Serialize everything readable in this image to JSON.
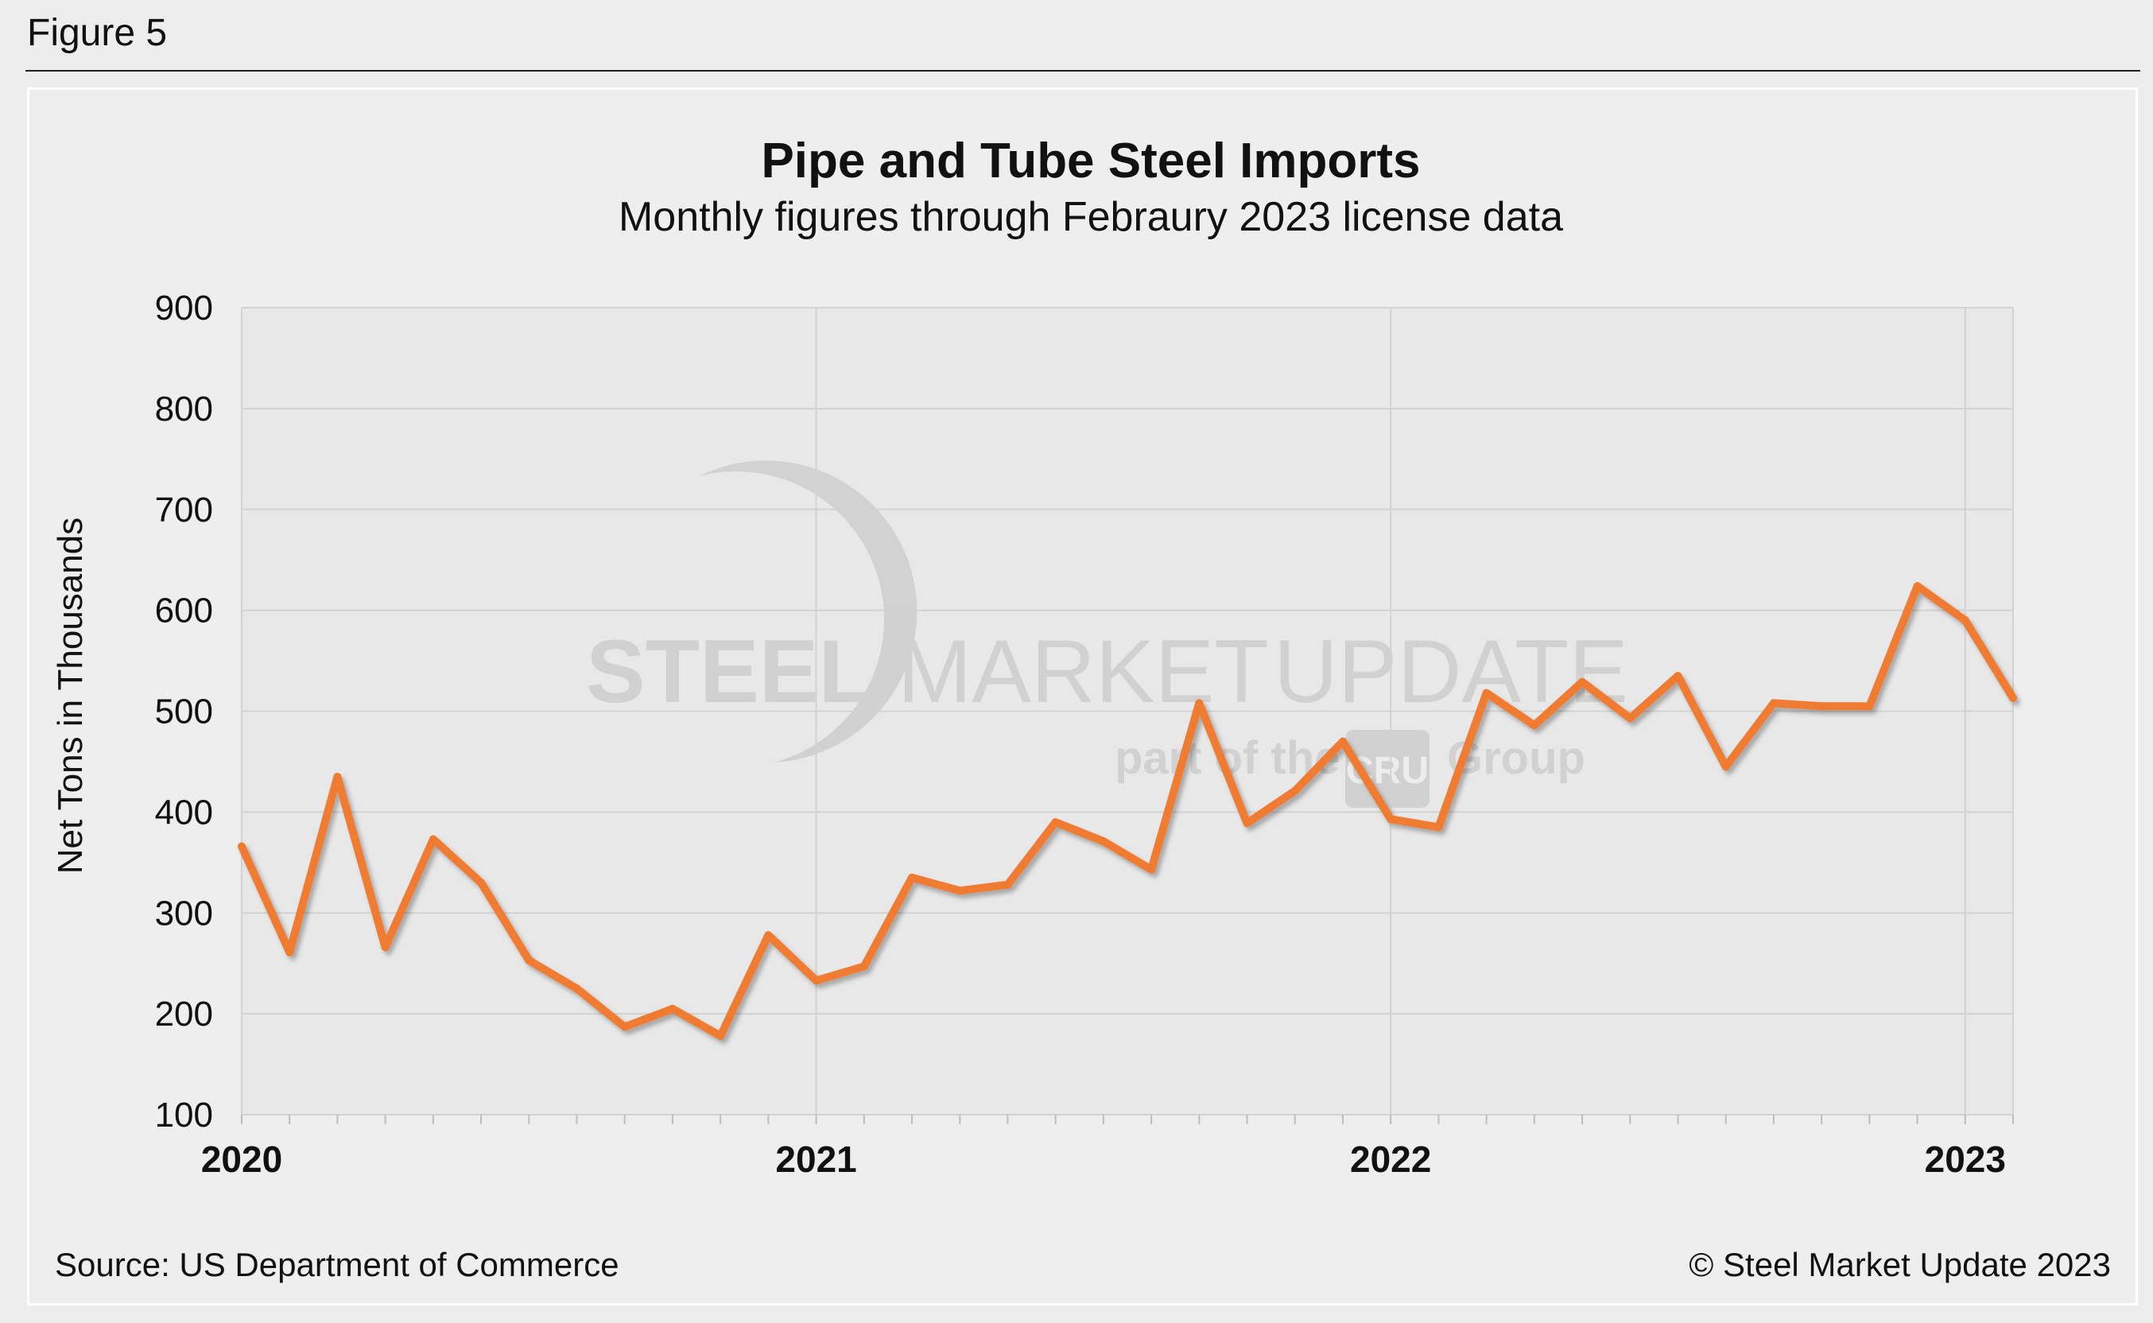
{
  "figure": {
    "label": "Figure 5"
  },
  "colors": {
    "line": "#ef7b31",
    "plot_bg": "#e8e8e9",
    "grid": "#d2d2d2",
    "watermark": "#cfcfcf"
  },
  "watermark": {
    "brand_bold": "STEEL",
    "brand_mid": "MARKET",
    "brand_light": "UPDATE",
    "tagline_prefix": "part of the",
    "tagline_logo": "CRU",
    "tagline_suffix": "Group"
  },
  "chart_data": {
    "type": "line",
    "title": "Pipe and Tube Steel Imports",
    "subtitle": "Monthly figures through Febraury 2023 license data",
    "xlabel": "",
    "ylabel": "Net Tons in Thousands",
    "ylim": [
      100,
      900
    ],
    "yticks": [
      100,
      200,
      300,
      400,
      500,
      600,
      700,
      800,
      900
    ],
    "xticks": [
      {
        "label": "2020",
        "index": 0
      },
      {
        "label": "2021",
        "index": 12
      },
      {
        "label": "2022",
        "index": 24
      },
      {
        "label": "2023",
        "index": 36
      }
    ],
    "grid": true,
    "x": [
      "2020-01",
      "2020-02",
      "2020-03",
      "2020-04",
      "2020-05",
      "2020-06",
      "2020-07",
      "2020-08",
      "2020-09",
      "2020-10",
      "2020-11",
      "2020-12",
      "2021-01",
      "2021-02",
      "2021-03",
      "2021-04",
      "2021-05",
      "2021-06",
      "2021-07",
      "2021-08",
      "2021-09",
      "2021-10",
      "2021-11",
      "2021-12",
      "2022-01",
      "2022-02",
      "2022-03",
      "2022-04",
      "2022-05",
      "2022-06",
      "2022-07",
      "2022-08",
      "2022-09",
      "2022-10",
      "2022-11",
      "2022-12",
      "2023-01",
      "2023-02"
    ],
    "series": [
      {
        "values": [
          366,
          261,
          435,
          266,
          373,
          330,
          253,
          225,
          187,
          205,
          178,
          278,
          233,
          247,
          335,
          322,
          328,
          390,
          371,
          343,
          508,
          389,
          421,
          470,
          393,
          385,
          518,
          486,
          529,
          493,
          535,
          445,
          508,
          505,
          505,
          624,
          590,
          513
        ]
      }
    ]
  },
  "footer": {
    "source": "Source: US Department of Commerce",
    "copyright": "© Steel Market Update 2023"
  }
}
